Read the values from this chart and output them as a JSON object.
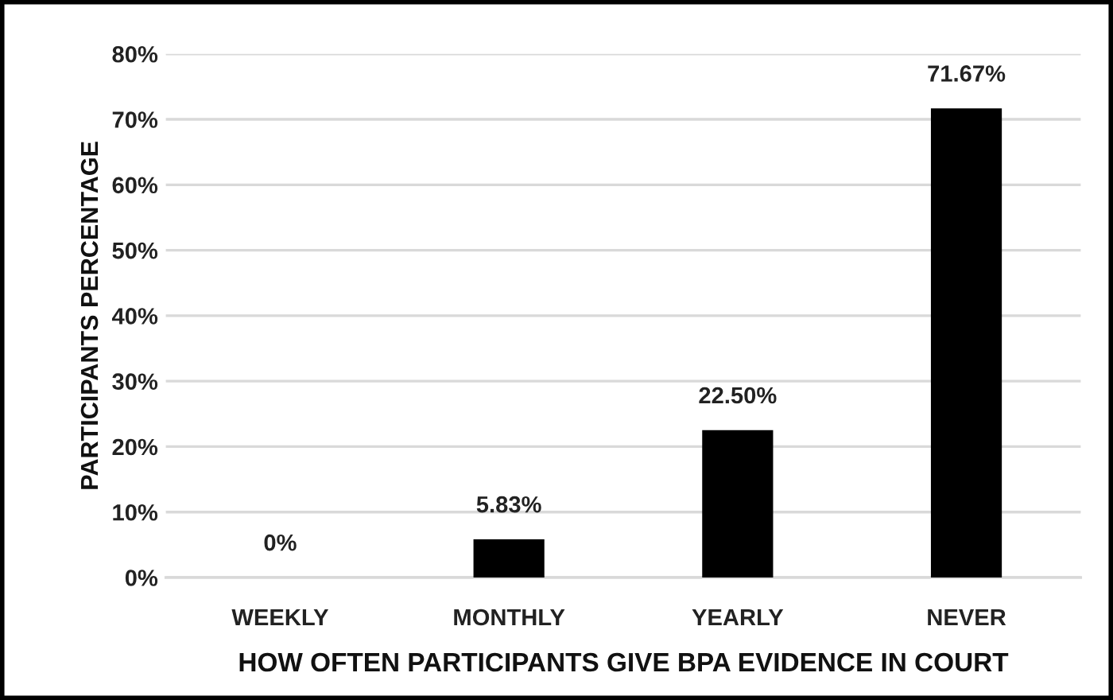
{
  "chart_data": {
    "type": "bar",
    "xlabel": "HOW OFTEN PARTICIPANTS GIVE BPA EVIDENCE IN COURT",
    "ylabel": "PARTICIPANTS PERCENTAGE",
    "categories": [
      "WEEKLY",
      "MONTHLY",
      "YEARLY",
      "NEVER"
    ],
    "values": [
      0,
      5.83,
      22.5,
      71.67
    ],
    "value_labels": [
      "0%",
      "5.83%",
      "22.50%",
      "71.67%"
    ],
    "color": "#000000",
    "ylim": [
      0,
      80
    ],
    "yticks": [
      {
        "value": 0,
        "label": "0%"
      },
      {
        "value": 10,
        "label": "10%"
      },
      {
        "value": 20,
        "label": "20%"
      },
      {
        "value": 30,
        "label": "30%"
      },
      {
        "value": 40,
        "label": "40%"
      },
      {
        "value": 50,
        "label": "50%"
      },
      {
        "value": 60,
        "label": "60%"
      },
      {
        "value": 70,
        "label": "70%"
      },
      {
        "value": 80,
        "label": "80%"
      }
    ],
    "grid": "y",
    "legend": false
  }
}
